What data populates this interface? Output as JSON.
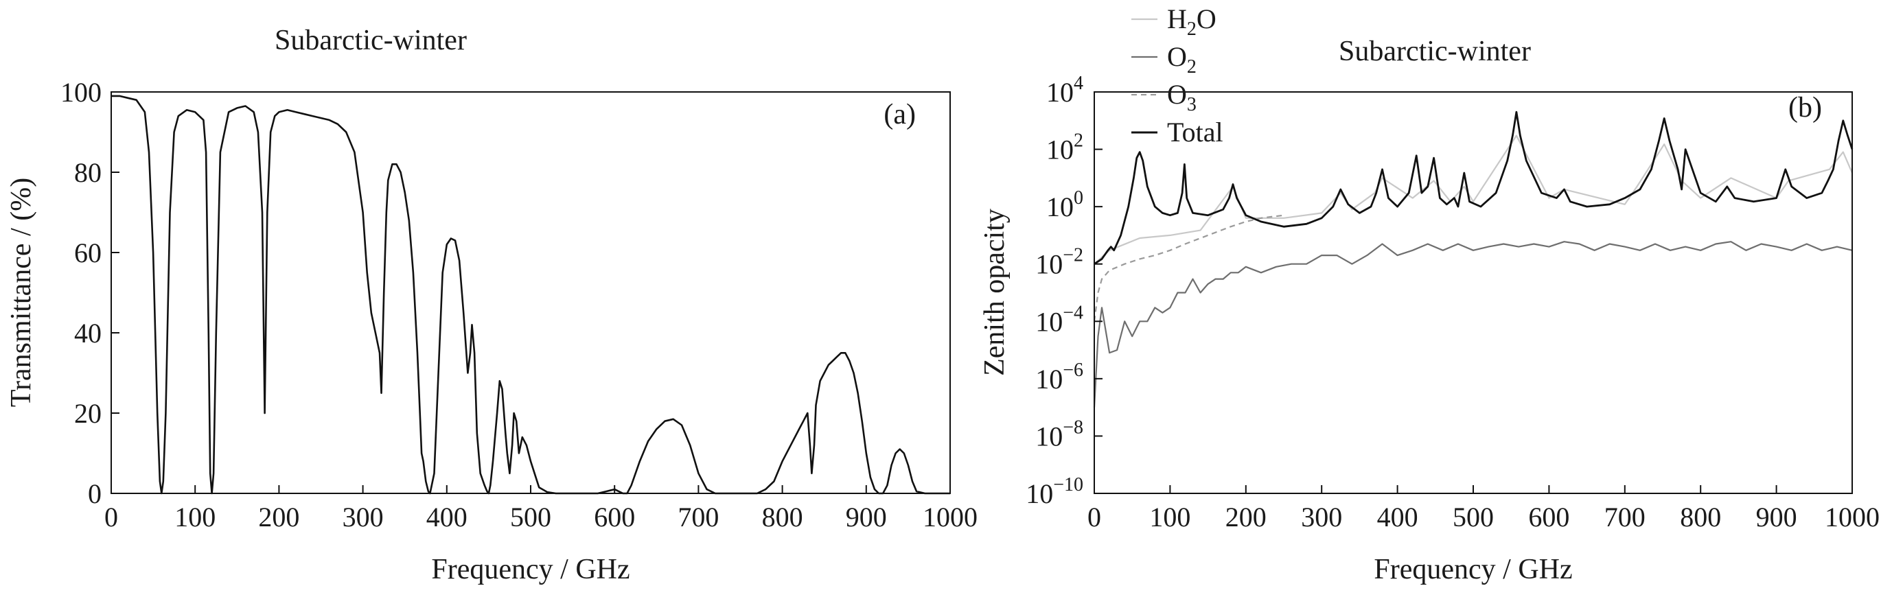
{
  "chart_data": [
    {
      "type": "line",
      "panel_label": "(a)",
      "title": "Subarctic-winter",
      "xlabel": "Frequency / GHz",
      "ylabel": "Transmittance / (%)",
      "xlim": [
        0,
        1000
      ],
      "ylim": [
        0,
        100
      ],
      "x_ticks": [
        0,
        100,
        200,
        300,
        400,
        500,
        600,
        700,
        800,
        900,
        1000
      ],
      "x_tick_labels": [
        "0",
        "100",
        "200",
        "300",
        "400",
        "500",
        "600",
        "700",
        "800",
        "900",
        "1000"
      ],
      "y_ticks": [
        0,
        20,
        40,
        60,
        80,
        100
      ],
      "y_tick_labels": [
        "0",
        "20",
        "40",
        "60",
        "80",
        "100"
      ],
      "grid": false,
      "series": [
        {
          "color": "#111111",
          "x": [
            0,
            10,
            20,
            30,
            40,
            45,
            50,
            55,
            58,
            60,
            62,
            65,
            70,
            75,
            80,
            90,
            100,
            110,
            113,
            116,
            118,
            120,
            122,
            125,
            130,
            140,
            150,
            160,
            170,
            175,
            180,
            183,
            186,
            190,
            195,
            200,
            210,
            220,
            230,
            240,
            250,
            260,
            270,
            280,
            290,
            300,
            305,
            310,
            315,
            320,
            322,
            325,
            328,
            330,
            335,
            340,
            345,
            350,
            355,
            360,
            365,
            368,
            370,
            372,
            375,
            378,
            380,
            385,
            390,
            395,
            400,
            405,
            410,
            415,
            420,
            425,
            428,
            430,
            433,
            436,
            440,
            445,
            448,
            450,
            452,
            455,
            460,
            463,
            466,
            470,
            472,
            475,
            478,
            480,
            483,
            486,
            490,
            495,
            500,
            510,
            520,
            530,
            540,
            550,
            560,
            570,
            580,
            590,
            600,
            605,
            610,
            615,
            620,
            630,
            640,
            650,
            660,
            670,
            680,
            690,
            700,
            710,
            720,
            730,
            740,
            750,
            760,
            770,
            780,
            790,
            800,
            810,
            820,
            825,
            830,
            833,
            835,
            838,
            840,
            845,
            850,
            855,
            860,
            865,
            870,
            875,
            880,
            885,
            890,
            895,
            900,
            905,
            910,
            915,
            920,
            925,
            930,
            935,
            940,
            945,
            950,
            955,
            960,
            970,
            980,
            990,
            1000
          ],
          "y": [
            99,
            99,
            98.5,
            98,
            95,
            85,
            60,
            20,
            3,
            0,
            3,
            20,
            70,
            90,
            94,
            95.5,
            95,
            93,
            85,
            40,
            5,
            0,
            5,
            40,
            85,
            95,
            96,
            96.5,
            95,
            90,
            70,
            20,
            70,
            90,
            94,
            95,
            95.5,
            95,
            94.5,
            94,
            93.5,
            93,
            92,
            90,
            85,
            70,
            55,
            45,
            40,
            35,
            25,
            50,
            70,
            78,
            82,
            82,
            80,
            75,
            68,
            55,
            35,
            20,
            10,
            8,
            3,
            0.5,
            0,
            5,
            30,
            55,
            62,
            63.5,
            63,
            58,
            45,
            30,
            35,
            42,
            35,
            15,
            5,
            2,
            0.5,
            0,
            2,
            8,
            20,
            28,
            26,
            15,
            10,
            5,
            12,
            20,
            18,
            10,
            14,
            12,
            8,
            1.5,
            0.3,
            0,
            0,
            0,
            0,
            0,
            0,
            0.5,
            1,
            0.5,
            0,
            0,
            2,
            8,
            13,
            16,
            18,
            18.5,
            17,
            12,
            5,
            1,
            0,
            0,
            0,
            0,
            0,
            0,
            1,
            3,
            8,
            12,
            16,
            18,
            20,
            12,
            5,
            12,
            22,
            28,
            30,
            32,
            33,
            34,
            35,
            35,
            33,
            30,
            25,
            18,
            10,
            4,
            1,
            0,
            0,
            2,
            7,
            10,
            11,
            10,
            7,
            3,
            0.5,
            0,
            0,
            0,
            0
          ]
        }
      ]
    },
    {
      "type": "line",
      "panel_label": "(b)",
      "title": "Subarctic-winter",
      "xlabel": "Frequency / GHz",
      "ylabel": "Zenith opacity",
      "xlim": [
        0,
        1000
      ],
      "ylim": [
        1e-10,
        10000
      ],
      "y_scale": "log",
      "x_ticks": [
        0,
        100,
        200,
        300,
        400,
        500,
        600,
        700,
        800,
        900,
        1000
      ],
      "x_tick_labels": [
        "0",
        "100",
        "200",
        "300",
        "400",
        "500",
        "600",
        "700",
        "800",
        "900",
        "1000"
      ],
      "y_ticks": [
        1e-10,
        1e-08,
        1e-06,
        0.0001,
        0.01,
        1,
        100,
        10000
      ],
      "y_tick_labels": [
        {
          "base": "10",
          "exp": "−10"
        },
        {
          "base": "10",
          "exp": "−8"
        },
        {
          "base": "10",
          "exp": "−6"
        },
        {
          "base": "10",
          "exp": "−4"
        },
        {
          "base": "10",
          "exp": "−2"
        },
        {
          "base": "10",
          "exp": "0"
        },
        {
          "base": "10",
          "exp": "2"
        },
        {
          "base": "10",
          "exp": "4"
        }
      ],
      "grid": false,
      "legend_position": "top-left, outside axes",
      "series": [
        {
          "name": "H2O",
          "name_parts": {
            "main": "H",
            "sub": "2",
            "rest": "O"
          },
          "color": "#c8c8c8",
          "style": "solid",
          "x": [
            0,
            20,
            60,
            100,
            140,
            183,
            200,
            250,
            300,
            325,
            340,
            370,
            380,
            420,
            448,
            470,
            488,
            500,
            557,
            600,
            620,
            700,
            716,
            752,
            775,
            800,
            840,
            900,
            916,
            970,
            988,
            1000
          ],
          "y": [
            0.01,
            0.03,
            0.08,
            0.1,
            0.15,
            5,
            0.4,
            0.4,
            0.6,
            3,
            0.8,
            3,
            10,
            2,
            8,
            1.5,
            5,
            1.5,
            300,
            2,
            4,
            1.2,
            5,
            150,
            8,
            2,
            10,
            2,
            8,
            20,
            80,
            15
          ]
        },
        {
          "name": "O2",
          "name_parts": {
            "main": "O",
            "sub": "2",
            "rest": ""
          },
          "color": "#6e6e6e",
          "style": "solid",
          "x": [
            0,
            5,
            10,
            20,
            30,
            40,
            50,
            60,
            70,
            80,
            90,
            100,
            110,
            120,
            130,
            140,
            150,
            160,
            170,
            180,
            190,
            200,
            220,
            240,
            260,
            280,
            300,
            320,
            340,
            360,
            380,
            400,
            420,
            440,
            460,
            480,
            500,
            520,
            540,
            560,
            580,
            600,
            620,
            640,
            660,
            680,
            700,
            720,
            740,
            760,
            780,
            800,
            820,
            840,
            860,
            880,
            900,
            920,
            940,
            960,
            980,
            1000
          ],
          "y": [
            1e-07,
            3e-05,
            0.0003,
            8e-06,
            1e-05,
            0.0001,
            3e-05,
            0.0001,
            0.0001,
            0.0003,
            0.0002,
            0.0003,
            0.001,
            0.001,
            0.003,
            0.001,
            0.002,
            0.003,
            0.003,
            0.005,
            0.005,
            0.008,
            0.005,
            0.008,
            0.01,
            0.01,
            0.02,
            0.02,
            0.01,
            0.02,
            0.05,
            0.02,
            0.03,
            0.05,
            0.03,
            0.05,
            0.03,
            0.04,
            0.05,
            0.04,
            0.05,
            0.04,
            0.06,
            0.05,
            0.03,
            0.05,
            0.04,
            0.03,
            0.05,
            0.03,
            0.04,
            0.03,
            0.05,
            0.06,
            0.03,
            0.05,
            0.04,
            0.03,
            0.05,
            0.03,
            0.04,
            0.03
          ]
        },
        {
          "name": "O3",
          "name_parts": {
            "main": "O",
            "sub": "3",
            "rest": ""
          },
          "color": "#9a9a9a",
          "style": "dashed",
          "x": [
            0,
            5,
            10,
            20,
            40,
            60,
            80,
            100,
            120,
            150,
            180,
            200,
            220,
            250
          ],
          "y": [
            0.0001,
            0.001,
            0.003,
            0.006,
            0.01,
            0.015,
            0.02,
            0.03,
            0.05,
            0.1,
            0.2,
            0.3,
            0.4,
            0.5
          ]
        },
        {
          "name": "Total",
          "name_parts": {
            "main": "Total",
            "sub": "",
            "rest": ""
          },
          "color": "#111111",
          "style": "solid",
          "x": [
            0,
            10,
            18,
            22,
            26,
            35,
            45,
            52,
            56,
            60,
            64,
            70,
            80,
            90,
            100,
            110,
            116,
            119,
            122,
            130,
            150,
            170,
            178,
            183,
            188,
            200,
            220,
            250,
            280,
            300,
            315,
            325,
            335,
            350,
            365,
            372,
            380,
            388,
            400,
            415,
            425,
            432,
            440,
            448,
            456,
            465,
            475,
            480,
            488,
            495,
            510,
            530,
            545,
            552,
            557,
            562,
            570,
            590,
            610,
            620,
            628,
            650,
            680,
            700,
            720,
            735,
            745,
            752,
            759,
            770,
            775,
            780,
            800,
            820,
            835,
            845,
            870,
            900,
            912,
            916,
            920,
            940,
            960,
            968,
            975,
            982,
            988,
            994,
            1000
          ],
          "y": [
            0.01,
            0.015,
            0.03,
            0.04,
            0.03,
            0.1,
            1,
            10,
            50,
            80,
            40,
            5,
            1,
            0.6,
            0.5,
            0.6,
            3,
            30,
            2,
            0.6,
            0.5,
            0.8,
            2,
            6,
            2,
            0.5,
            0.3,
            0.2,
            0.25,
            0.4,
            1,
            4,
            1.2,
            0.6,
            1,
            3,
            20,
            2,
            1,
            3,
            60,
            3,
            5,
            50,
            2,
            1.2,
            2,
            1,
            15,
            1.5,
            1,
            3,
            40,
            300,
            2000,
            300,
            40,
            3,
            2,
            4,
            1.5,
            1,
            1.2,
            2,
            4,
            20,
            200,
            1200,
            200,
            20,
            4,
            100,
            3,
            1.5,
            5,
            2,
            1.5,
            2,
            20,
            10,
            5,
            2,
            3,
            8,
            20,
            200,
            1000,
            300,
            100
          ]
        }
      ]
    }
  ]
}
